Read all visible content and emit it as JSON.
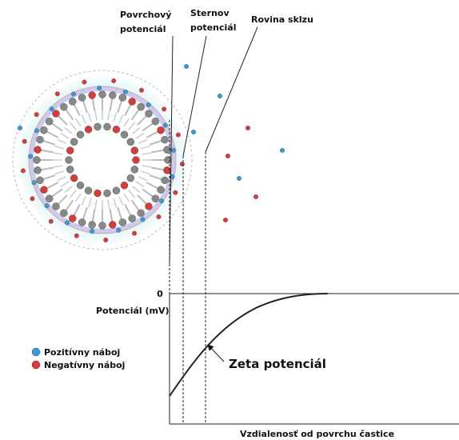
{
  "labels": {
    "surface": [
      "Povrchový",
      "potenciál"
    ],
    "stern": [
      "Sternov",
      "potenciál"
    ],
    "slip_plane": "Rovina sklzu",
    "zero": "0",
    "y_axis": "Potenciál (mV)",
    "x_axis": "Vzdialenosť od povrchu častice",
    "zeta": "Zeta potenciál"
  },
  "legend": [
    "Pozitívny náboj",
    "Negatívny náboj"
  ]
}
